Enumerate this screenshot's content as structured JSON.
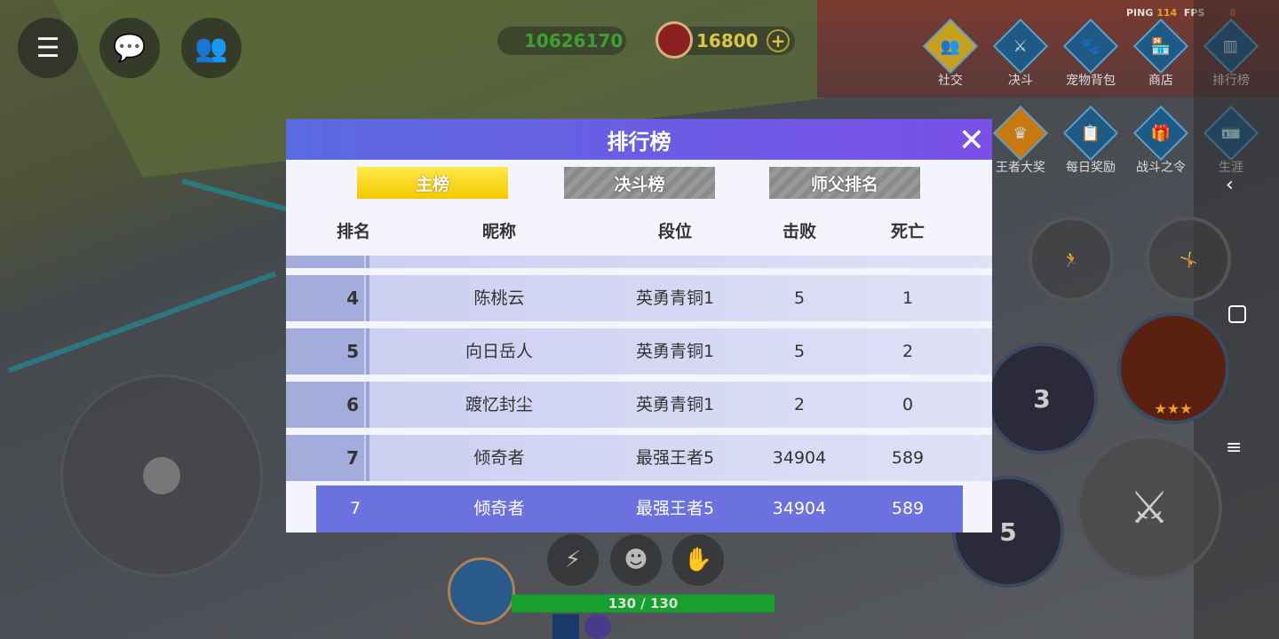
{
  "hud": {
    "currency_cash": "10626170",
    "currency_trophy": "16800",
    "ping_label": "PING",
    "ping_value": "114",
    "fps_label": "FPS",
    "fps_value": "8",
    "hp": "130 / 130"
  },
  "menu": [
    {
      "label": "社交",
      "icon": "people-icon",
      "color": "#c8a020"
    },
    {
      "label": "决斗",
      "icon": "swords-icon",
      "color": "#1e5a85"
    },
    {
      "label": "宠物背包",
      "icon": "paw-icon",
      "color": "#1e5a85"
    },
    {
      "label": "商店",
      "icon": "shop-icon",
      "color": "#1e5a85"
    },
    {
      "label": "排行榜",
      "icon": "ranking-icon",
      "color": "#1e5a85"
    },
    {
      "label": "王者大奖",
      "icon": "crown-icon",
      "color": "#c87a10"
    },
    {
      "label": "每日奖励",
      "icon": "clipboard-icon",
      "color": "#1e5a85"
    },
    {
      "label": "战斗之令",
      "icon": "gift-icon",
      "color": "#1e5a85"
    },
    {
      "label": "生涯",
      "icon": "id-card-icon",
      "color": "#1e5a85"
    }
  ],
  "skills": {
    "skill1_level": "3",
    "skill2_level": "5"
  },
  "dialog": {
    "title": "排行榜",
    "tabs": [
      {
        "label": "主榜",
        "active": true
      },
      {
        "label": "决斗榜",
        "active": false
      },
      {
        "label": "师父排名",
        "active": false
      }
    ],
    "columns": [
      "排名",
      "昵称",
      "段位",
      "击败",
      "死亡"
    ],
    "rows": [
      {
        "rank": "4",
        "name": "陈桃云",
        "tier": "英勇青铜1",
        "kills": "5",
        "deaths": "1"
      },
      {
        "rank": "5",
        "name": "向日岳人",
        "tier": "英勇青铜1",
        "kills": "5",
        "deaths": "2"
      },
      {
        "rank": "6",
        "name": "踱忆封尘",
        "tier": "英勇青铜1",
        "kills": "2",
        "deaths": "0"
      },
      {
        "rank": "7",
        "name": "倾奇者",
        "tier": "最强王者5",
        "kills": "34904",
        "deaths": "589"
      }
    ],
    "self": {
      "rank": "7",
      "name": "倾奇者",
      "tier": "最强王者5",
      "kills": "34904",
      "deaths": "589"
    }
  }
}
